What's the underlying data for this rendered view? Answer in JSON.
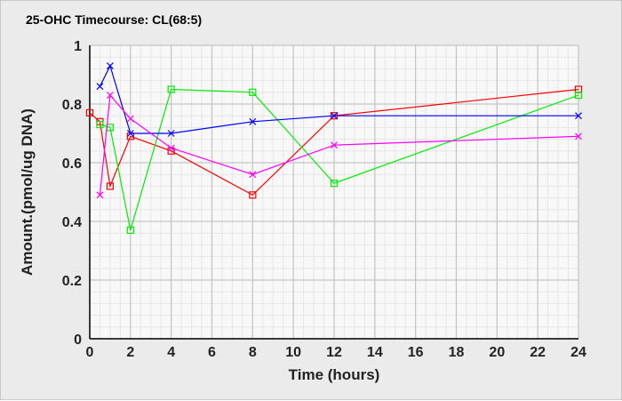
{
  "chart_data": {
    "type": "line",
    "title": "25-OHC Timecourse: CL(68:5)",
    "xlabel": "Time (hours)",
    "ylabel": "Amount.(pmol/ug DNA)",
    "xlim": [
      0,
      24
    ],
    "ylim": [
      0,
      1
    ],
    "xticks": [
      0,
      2,
      4,
      6,
      8,
      10,
      12,
      14,
      16,
      18,
      20,
      22,
      24
    ],
    "xtick_labels": [
      "0",
      "2",
      "4",
      "6",
      "8",
      "10",
      "12",
      "14",
      "16",
      "18",
      "20",
      "22",
      "24"
    ],
    "yticks": [
      0,
      0.2,
      0.4,
      0.6,
      0.8,
      1
    ],
    "ytick_labels": [
      "0",
      "0.2",
      "0.4",
      "0.6",
      "0.8",
      "1"
    ],
    "grid": true,
    "series": [
      {
        "name": "red",
        "color": "#ff0000",
        "marker": "square",
        "x": [
          0,
          0.5,
          1,
          2,
          4,
          8,
          12,
          24
        ],
        "y": [
          0.77,
          0.74,
          0.52,
          0.69,
          0.64,
          0.49,
          0.76,
          0.85
        ]
      },
      {
        "name": "green",
        "color": "#00ee00",
        "marker": "square",
        "x": [
          0.5,
          1,
          2,
          4,
          8,
          12,
          24
        ],
        "y": [
          0.73,
          0.72,
          0.37,
          0.85,
          0.84,
          0.53,
          0.83
        ]
      },
      {
        "name": "blue",
        "color": "#0000ff",
        "marker": "x",
        "x": [
          0.5,
          1,
          2,
          4,
          8,
          12,
          24
        ],
        "y": [
          0.86,
          0.93,
          0.7,
          0.7,
          0.74,
          0.76,
          0.76
        ]
      },
      {
        "name": "magenta",
        "color": "#ff00ff",
        "marker": "x",
        "x": [
          0.5,
          1,
          2,
          4,
          8,
          12,
          24
        ],
        "y": [
          0.49,
          0.83,
          0.75,
          0.65,
          0.56,
          0.66,
          0.69
        ]
      }
    ]
  }
}
